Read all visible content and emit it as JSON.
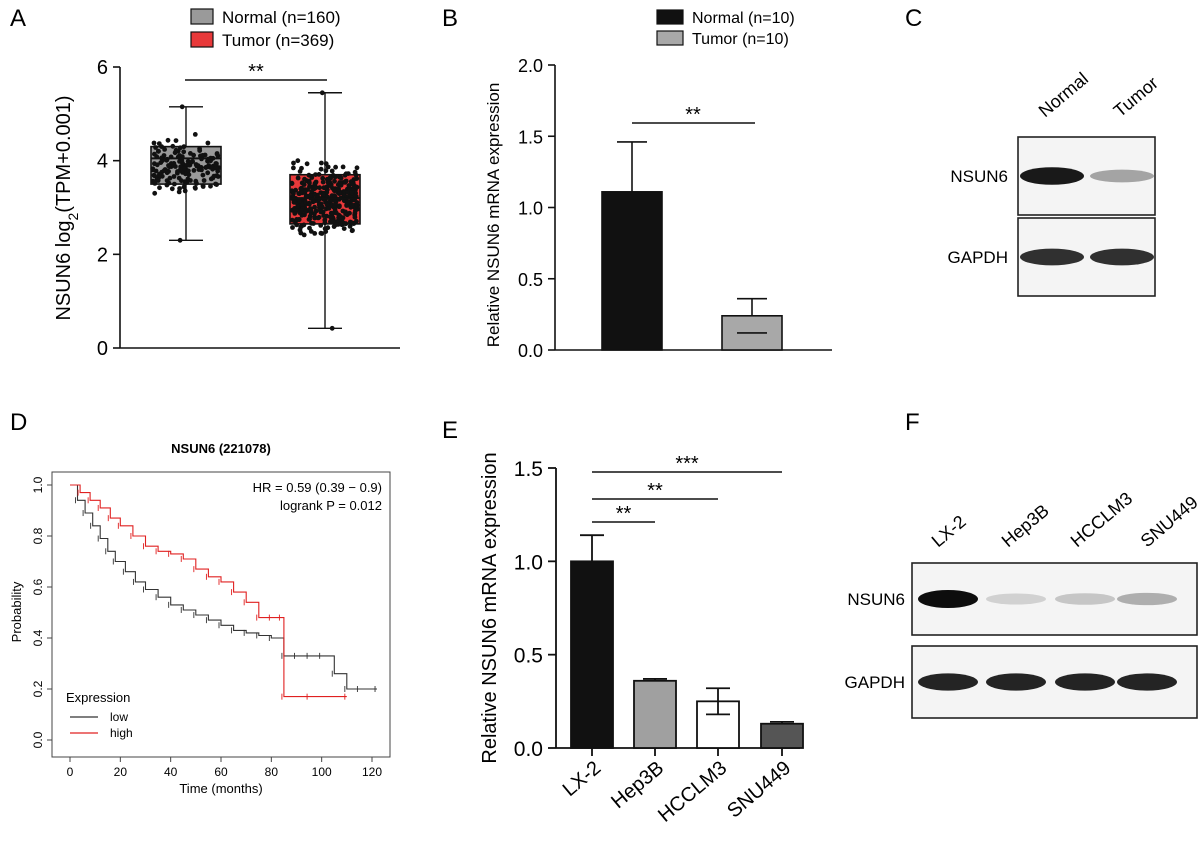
{
  "panels": {
    "A": {
      "letter": "A"
    },
    "B": {
      "letter": "B"
    },
    "C": {
      "letter": "C"
    },
    "D": {
      "letter": "D"
    },
    "E": {
      "letter": "E"
    },
    "F": {
      "letter": "F"
    }
  },
  "colors": {
    "normal_gray": "#9a9a9a",
    "tumor_red": "#e8393a",
    "black": "#111111",
    "km_low": "#333333",
    "km_high": "#e02020",
    "dark_gray": "#555555"
  },
  "chart_data": [
    {
      "panel": "A",
      "type": "box",
      "ylabel": "NSUN6 log",
      "ylabel_sub": "2",
      "ylabel_tail": "(TPM+0.001)",
      "ylim": [
        0,
        6
      ],
      "yticks": [
        "0",
        "2",
        "4",
        "6"
      ],
      "significance": "**",
      "legend": [
        "Normal (n=160)",
        "Tumor (n=369)"
      ],
      "series": [
        {
          "name": "Normal (n=160)",
          "n": 160,
          "min": 2.3,
          "q1": 3.5,
          "median": 4.05,
          "q3": 4.3,
          "max": 5.15
        },
        {
          "name": "Tumor (n=369)",
          "n": 369,
          "min": 0.42,
          "q1": 2.65,
          "median": 3.2,
          "q3": 3.7,
          "max": 5.45
        }
      ]
    },
    {
      "panel": "B",
      "type": "bar",
      "ylabel": "Relative NSUN6 mRNA expression",
      "ylim": [
        0,
        2.0
      ],
      "yticks": [
        "0.0",
        "0.5",
        "1.0",
        "1.5",
        "2.0"
      ],
      "significance": "**",
      "legend": [
        "Normal (n=10)",
        "Tumor (n=10)"
      ],
      "series": [
        {
          "name": "Normal (n=10)",
          "value": 1.11,
          "error": 0.35
        },
        {
          "name": "Tumor (n=10)",
          "value": 0.24,
          "error": 0.12
        }
      ]
    },
    {
      "panel": "D",
      "type": "line",
      "title": "NSUN6 (221078)",
      "xlabel": "Time (months)",
      "ylabel": "Probability",
      "xlim": [
        0,
        125
      ],
      "ylim": [
        0,
        1.0
      ],
      "xticks": [
        "0",
        "20",
        "40",
        "60",
        "80",
        "100",
        "120"
      ],
      "yticks": [
        "0.0",
        "0.2",
        "0.4",
        "0.6",
        "0.8",
        "1.0"
      ],
      "annotation_hr": "HR = 0.59 (0.39 − 0.9)",
      "annotation_p": "logrank P = 0.012",
      "legend_title": "Expression",
      "series": [
        {
          "name": "low",
          "x": [
            0,
            3,
            6,
            9,
            12,
            15,
            18,
            22,
            26,
            30,
            35,
            40,
            45,
            50,
            55,
            60,
            65,
            70,
            75,
            80,
            85,
            90,
            95,
            100,
            105,
            110,
            115,
            122
          ],
          "y": [
            1.0,
            0.94,
            0.89,
            0.84,
            0.79,
            0.74,
            0.7,
            0.66,
            0.62,
            0.59,
            0.56,
            0.53,
            0.51,
            0.49,
            0.47,
            0.45,
            0.43,
            0.42,
            0.41,
            0.4,
            0.33,
            0.33,
            0.33,
            0.33,
            0.26,
            0.2,
            0.2,
            0.2
          ]
        },
        {
          "name": "high",
          "x": [
            0,
            4,
            8,
            12,
            16,
            20,
            25,
            30,
            35,
            40,
            45,
            50,
            55,
            60,
            65,
            70,
            75,
            80,
            84,
            85,
            95,
            110
          ],
          "y": [
            1.0,
            0.97,
            0.94,
            0.91,
            0.87,
            0.84,
            0.8,
            0.76,
            0.74,
            0.73,
            0.71,
            0.67,
            0.64,
            0.62,
            0.58,
            0.54,
            0.48,
            0.48,
            0.48,
            0.17,
            0.17,
            0.17
          ]
        }
      ]
    },
    {
      "panel": "E",
      "type": "bar",
      "ylabel": "Relative NSUN6 mRNA expression",
      "ylim": [
        0,
        1.5
      ],
      "yticks": [
        "0.0",
        "0.5",
        "1.0",
        "1.5"
      ],
      "categories": [
        "LX-2",
        "Hep3B",
        "HCCLM3",
        "SNU449"
      ],
      "values": [
        1.0,
        0.36,
        0.25,
        0.13
      ],
      "errors": [
        0.14,
        0.01,
        0.07,
        0.01
      ],
      "bar_colors": [
        "#111111",
        "#a0a0a0",
        "#ffffff",
        "#555555"
      ],
      "comparisons": [
        {
          "from": 0,
          "to": 1,
          "label": "**"
        },
        {
          "from": 0,
          "to": 2,
          "label": "**"
        },
        {
          "from": 0,
          "to": 3,
          "label": "***"
        }
      ]
    }
  ],
  "blots": {
    "C": {
      "lanes": [
        "Normal",
        "Tumor"
      ],
      "rows": [
        {
          "label": "NSUN6",
          "intensity": [
            0.95,
            0.35
          ]
        },
        {
          "label": "GAPDH",
          "intensity": [
            0.85,
            0.85
          ]
        }
      ]
    },
    "F": {
      "lanes": [
        "LX-2",
        "Hep3B",
        "HCCLM3",
        "SNU449"
      ],
      "rows": [
        {
          "label": "NSUN6",
          "intensity": [
            1.0,
            0.15,
            0.2,
            0.3
          ]
        },
        {
          "label": "GAPDH",
          "intensity": [
            0.9,
            0.9,
            0.9,
            0.9
          ]
        }
      ]
    }
  }
}
